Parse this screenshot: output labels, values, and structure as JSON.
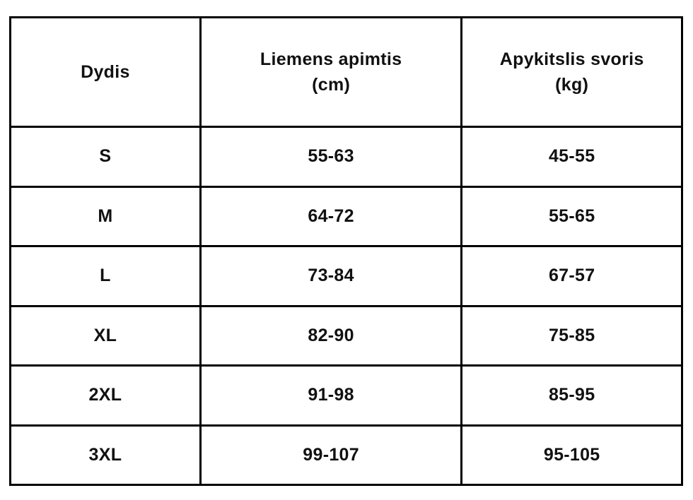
{
  "chart_data": {
    "type": "table",
    "title": "",
    "columns": [
      "Dydis",
      "Liemens apimtis (cm)",
      "Apykitslis svoris (kg)"
    ],
    "rows": [
      [
        "S",
        "55-63",
        "45-55"
      ],
      [
        "M",
        "64-72",
        "55-65"
      ],
      [
        "L",
        "73-84",
        "67-57"
      ],
      [
        "XL",
        "82-90",
        "75-85"
      ],
      [
        "2XL",
        "91-98",
        "85-95"
      ],
      [
        "3XL",
        "99-107",
        "95-105"
      ]
    ]
  },
  "headers": [
    {
      "label": "Dydis",
      "unit": ""
    },
    {
      "label": "Liemens apimtis",
      "unit": "(cm)"
    },
    {
      "label": "Apykitslis svoris",
      "unit": "(kg)"
    }
  ],
  "colors": {
    "background": "#ffffff",
    "border": "#000000",
    "text": "#111111"
  }
}
